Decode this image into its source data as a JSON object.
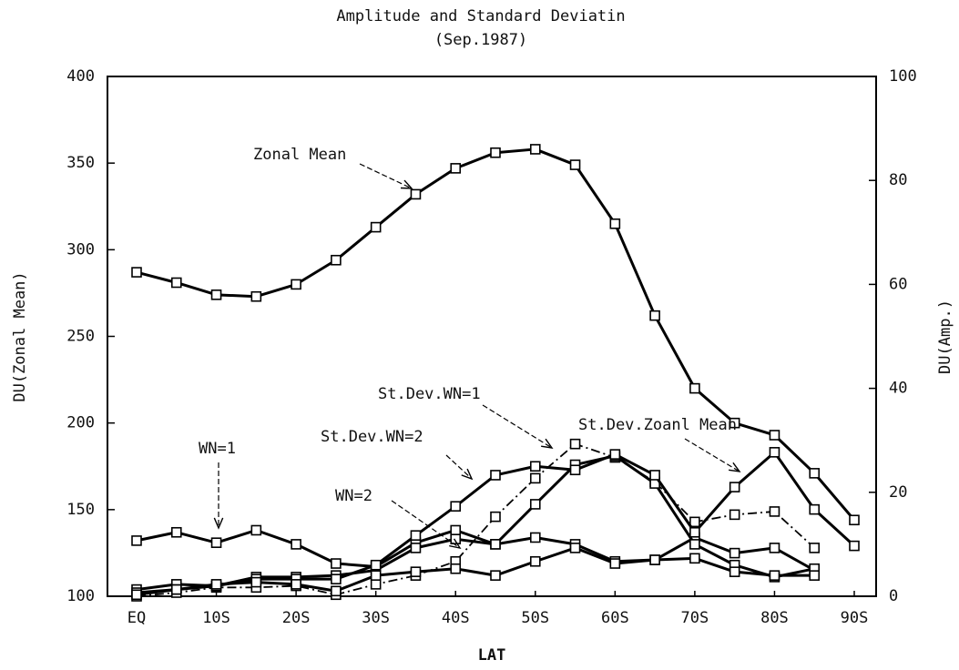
{
  "chart_data": {
    "type": "line",
    "title": "Amplitude and Standard Deviatin",
    "subtitle": "(Sep.1987)",
    "x_label": "LAT",
    "y_label": "DU(Zonal Mean)",
    "y2_label": "DU(Amp.)",
    "categories": [
      "EQ",
      null,
      "10S",
      null,
      "20S",
      null,
      "30S",
      null,
      "40S",
      null,
      "50S",
      null,
      "60S",
      null,
      "70S",
      null,
      "80S",
      null,
      "90S"
    ],
    "ylim": [
      100,
      400
    ],
    "yticks": [
      100,
      150,
      200,
      250,
      300,
      350,
      400
    ],
    "y2lim": [
      0,
      100
    ],
    "y2ticks": [
      0,
      20,
      40,
      60,
      80,
      100
    ],
    "series": [
      {
        "name": "Zonal Mean",
        "color": "#000000",
        "values": [
          287,
          281,
          274,
          273,
          280,
          294,
          313,
          332,
          347,
          356,
          358,
          349,
          315,
          262,
          220,
          200,
          193,
          171,
          144
        ]
      },
      {
        "name": "WN=1",
        "color": "#000000",
        "axis": "y2",
        "values": [
          10.7,
          12.3,
          10.3,
          12.7,
          10,
          6.3,
          5.7,
          10.3,
          12.7,
          10,
          11.3,
          10,
          6.7,
          7,
          11.3,
          8.3,
          9.3,
          5,
          null
        ]
      },
      {
        "name": "St.Dev.WN=1",
        "color": "#000000",
        "axis": "y2",
        "dash": true,
        "values": [
          0,
          0.7,
          1.7,
          1.7,
          2,
          0.3,
          2.3,
          4,
          6.7,
          15.3,
          22.7,
          29.3,
          26.7,
          22,
          14.3,
          15.7,
          16.3,
          9.3,
          null
        ]
      },
      {
        "name": "St.Dev.WN=2",
        "color": "#000000",
        "axis": "y2",
        "values": [
          1.3,
          2.3,
          2,
          3.7,
          3.7,
          4,
          5,
          9.3,
          11,
          10,
          17.7,
          25.3,
          27,
          21.7,
          10,
          6,
          3.7,
          5.3,
          null
        ]
      },
      {
        "name": "St.Dev.Zoanl Mean",
        "color": "#000000",
        "axis": "y2",
        "values": [
          0.7,
          1.3,
          2,
          3.3,
          3.3,
          3.3,
          6,
          11.7,
          17.3,
          23.3,
          25,
          24.3,
          27.3,
          23.3,
          12.3,
          21,
          27.7,
          16.7,
          9.7
        ]
      },
      {
        "name": "WN=2",
        "color": "#000000",
        "axis": "y2",
        "values": [
          0.3,
          1.3,
          2.3,
          2.7,
          2.3,
          1,
          4,
          4.7,
          5.3,
          4,
          6.7,
          9.3,
          6.3,
          7,
          7.3,
          4.7,
          4,
          4,
          null
        ]
      }
    ]
  }
}
